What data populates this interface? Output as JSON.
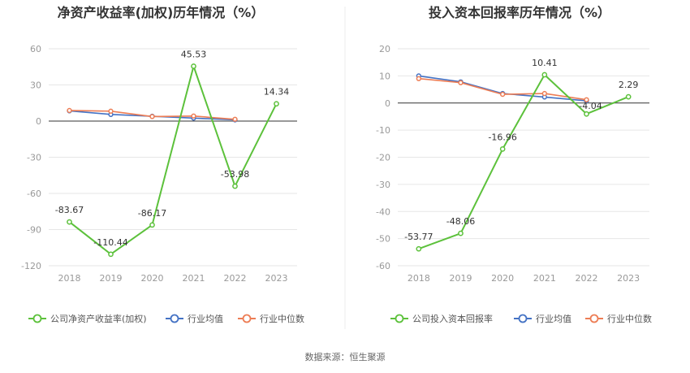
{
  "footer": {
    "source": "数据来源：恒生聚源"
  },
  "colors": {
    "company": "#5cc13b",
    "avg": "#4472c4",
    "median": "#ed7d55",
    "grid": "#e6e6e6",
    "axis": "#333333"
  },
  "chart_data": [
    {
      "type": "line",
      "title": "净资产收益率(加权)历年情况（%）",
      "categories": [
        "2018",
        "2019",
        "2020",
        "2021",
        "2022",
        "2023"
      ],
      "ylim": [
        -120,
        60
      ],
      "yticks": [
        60,
        30,
        0,
        -30,
        -60,
        -90,
        -120
      ],
      "grid": true,
      "legend_position": "bottom",
      "series": [
        {
          "name": "公司净资产收益率(加权)",
          "color": "#5cc13b",
          "values": [
            -83.67,
            -110.44,
            -86.17,
            45.53,
            -53.98,
            14.34
          ],
          "labels": [
            "-83.67",
            "-110.44",
            "-86.17",
            "45.53",
            "-53.98",
            "14.34"
          ]
        },
        {
          "name": "行业均值",
          "color": "#4472c4",
          "values": [
            8.5,
            5.5,
            4.0,
            2.5,
            1.0,
            null
          ]
        },
        {
          "name": "行业中位数",
          "color": "#ed7d55",
          "values": [
            8.8,
            8.2,
            3.8,
            4.2,
            1.5,
            null
          ]
        }
      ]
    },
    {
      "type": "line",
      "title": "投入资本回报率历年情况（%）",
      "categories": [
        "2018",
        "2019",
        "2020",
        "2021",
        "2022",
        "2023"
      ],
      "ylim": [
        -60,
        20
      ],
      "yticks": [
        20,
        10,
        0,
        -10,
        -20,
        -30,
        -40,
        -50,
        -60
      ],
      "grid": true,
      "legend_position": "bottom",
      "series": [
        {
          "name": "公司投入资本回报率",
          "color": "#5cc13b",
          "values": [
            -53.77,
            -48.06,
            -16.96,
            10.41,
            -4.04,
            2.29
          ],
          "labels": [
            "-53.77",
            "-48.06",
            "-16.96",
            "10.41",
            "-4.04",
            "2.29"
          ]
        },
        {
          "name": "行业均值",
          "color": "#4472c4",
          "values": [
            10.0,
            7.8,
            3.5,
            2.2,
            0.8,
            null
          ]
        },
        {
          "name": "行业中位数",
          "color": "#ed7d55",
          "values": [
            9.0,
            7.5,
            3.2,
            3.5,
            1.2,
            null
          ]
        }
      ]
    }
  ]
}
